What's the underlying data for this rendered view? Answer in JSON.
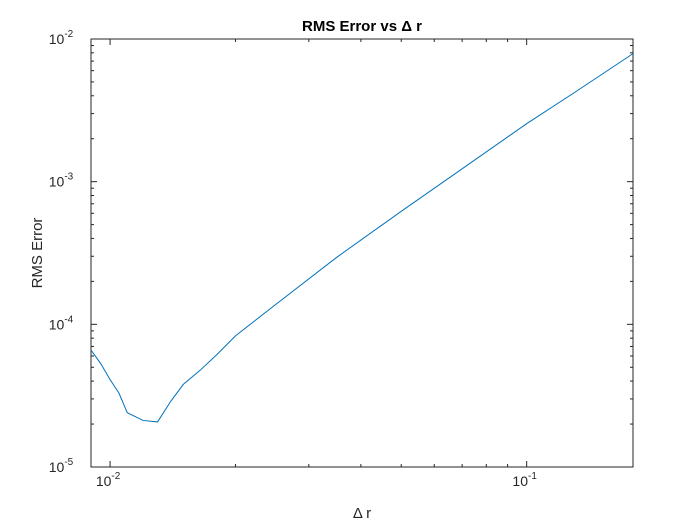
{
  "chart_data": {
    "type": "line",
    "title": "RMS Error vs Δ r",
    "xlabel": "Δ r",
    "ylabel": "RMS Error",
    "xscale": "log",
    "yscale": "log",
    "xlim": [
      0.009,
      0.18
    ],
    "ylim": [
      1e-05,
      0.01
    ],
    "grid": false,
    "legend": "none",
    "x_ticks": [
      {
        "value": 0.01,
        "base": "10",
        "exp": "-2"
      },
      {
        "value": 0.1,
        "base": "10",
        "exp": "-1"
      }
    ],
    "y_ticks": [
      {
        "value": 1e-05,
        "base": "10",
        "exp": "-5"
      },
      {
        "value": 0.0001,
        "base": "10",
        "exp": "-4"
      },
      {
        "value": 0.001,
        "base": "10",
        "exp": "-3"
      },
      {
        "value": 0.01,
        "base": "10",
        "exp": "-2"
      }
    ],
    "series": [
      {
        "color": "#0072BD",
        "x": [
          0.009,
          0.0095,
          0.01,
          0.0105,
          0.011,
          0.012,
          0.013,
          0.014,
          0.015,
          0.0165,
          0.018,
          0.02,
          0.025,
          0.035,
          0.05,
          0.07,
          0.1,
          0.13,
          0.18
        ],
        "y": [
          6.6e-05,
          5.3e-05,
          4.1e-05,
          3.3e-05,
          2.4e-05,
          2.12e-05,
          2.07e-05,
          2.9e-05,
          3.8e-05,
          4.8e-05,
          6.1e-05,
          8.3e-05,
          0.000138,
          0.000295,
          0.00062,
          0.00123,
          0.00255,
          0.0042,
          0.0079
        ]
      }
    ]
  }
}
